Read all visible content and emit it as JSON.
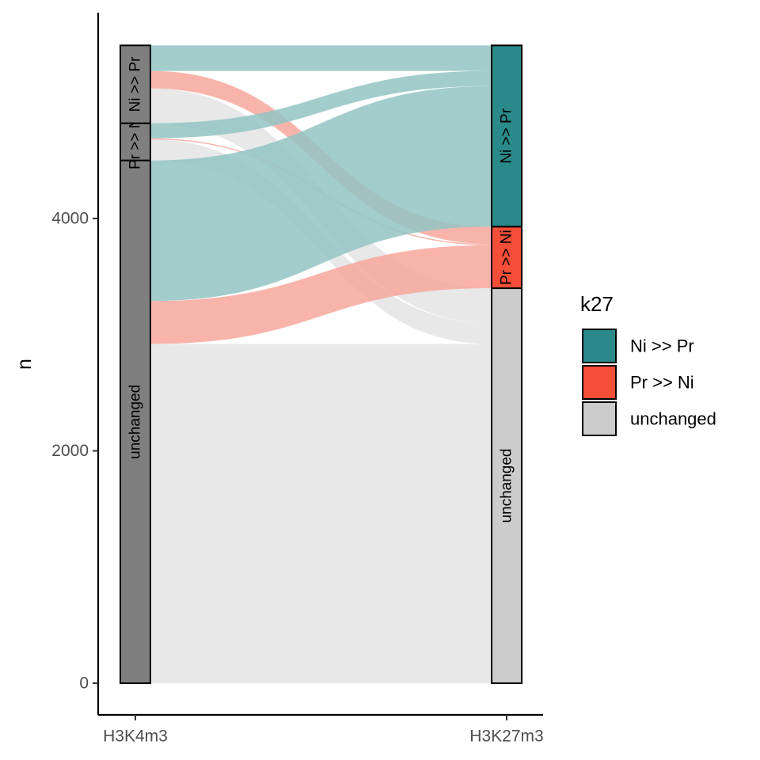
{
  "chart_data": {
    "type": "alluvial",
    "ylabel": "n",
    "ylim": [
      0,
      5500
    ],
    "y_ticks": [
      0,
      2000,
      4000
    ],
    "axes": [
      "H3K4m3",
      "H3K27m3"
    ],
    "categories": [
      "Ni >> Pr",
      "Pr >> Ni",
      "unchanged"
    ],
    "colors": {
      "Ni >> Pr": "#2a8a89",
      "Pr >> Ni": "#f44e38",
      "unchanged": "#cccccc",
      "left_stratum": "#7f7f7f",
      "flow_unchanged": "#e4e4e4",
      "flow_ni_pr": "#93c4c4",
      "flow_pr_ni": "#f7a79c"
    },
    "strata": {
      "H3K4m3": [
        {
          "label": "unchanged",
          "n": 4500
        },
        {
          "label": "Pr >> Ni",
          "n": 320
        },
        {
          "label": "Ni >> Pr",
          "n": 670
        }
      ],
      "H3K27m3": [
        {
          "label": "unchanged",
          "n": 3400
        },
        {
          "label": "Pr >> Ni",
          "n": 530
        },
        {
          "label": "Ni >> Pr",
          "n": 1560
        }
      ]
    },
    "flows": [
      {
        "from": "unchanged",
        "to": "unchanged",
        "k27": "unchanged",
        "n": 2920
      },
      {
        "from": "unchanged",
        "to": "Pr >> Ni",
        "k27": "Pr >> Ni",
        "n": 370
      },
      {
        "from": "unchanged",
        "to": "Ni >> Pr",
        "k27": "Ni >> Pr",
        "n": 1210
      },
      {
        "from": "Pr >> Ni",
        "to": "unchanged",
        "k27": "unchanged",
        "n": 180
      },
      {
        "from": "Pr >> Ni",
        "to": "Pr >> Ni",
        "k27": "Pr >> Ni",
        "n": 10
      },
      {
        "from": "Pr >> Ni",
        "to": "Ni >> Pr",
        "k27": "Ni >> Pr",
        "n": 130
      },
      {
        "from": "Ni >> Pr",
        "to": "unchanged",
        "k27": "unchanged",
        "n": 300
      },
      {
        "from": "Ni >> Pr",
        "to": "Pr >> Ni",
        "k27": "Pr >> Ni",
        "n": 150
      },
      {
        "from": "Ni >> Pr",
        "to": "Ni >> Pr",
        "k27": "Ni >> Pr",
        "n": 220
      }
    ],
    "legend": {
      "title": "k27",
      "position": "right",
      "entries": [
        "Ni >> Pr",
        "Pr >> Ni",
        "unchanged"
      ]
    },
    "grid": false
  }
}
